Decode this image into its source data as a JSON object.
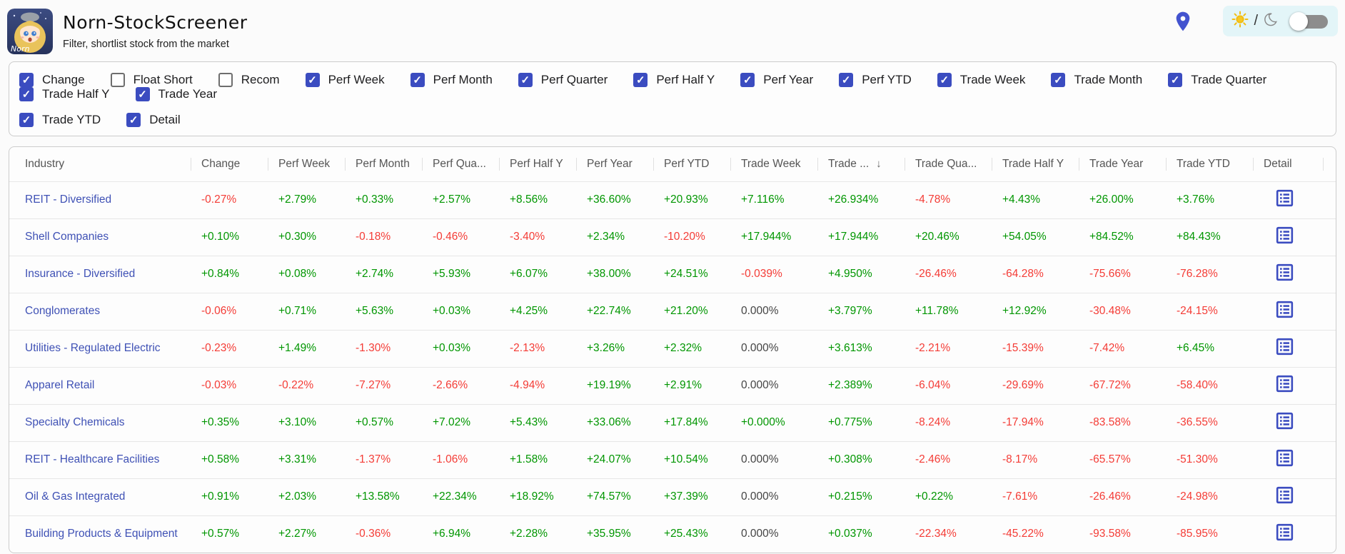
{
  "header": {
    "title": "Norn-StockScreener",
    "subtitle": "Filter, shortlist stock from the market",
    "logo_text": "Norn"
  },
  "toolbar": {
    "location_icon": "location-pin",
    "theme_separator": "/",
    "theme_toggle_state": "off"
  },
  "filters": {
    "row1": [
      {
        "label": "Change",
        "checked": true
      },
      {
        "label": "Float Short",
        "checked": false
      },
      {
        "label": "Recom",
        "checked": false
      },
      {
        "label": "Perf Week",
        "checked": true
      },
      {
        "label": "Perf Month",
        "checked": true
      },
      {
        "label": "Perf Quarter",
        "checked": true
      },
      {
        "label": "Perf Half Y",
        "checked": true
      },
      {
        "label": "Perf Year",
        "checked": true
      },
      {
        "label": "Perf YTD",
        "checked": true
      },
      {
        "label": "Trade Week",
        "checked": true
      },
      {
        "label": "Trade Month",
        "checked": true
      },
      {
        "label": "Trade Quarter",
        "checked": true
      },
      {
        "label": "Trade Half Y",
        "checked": true
      },
      {
        "label": "Trade Year",
        "checked": true
      }
    ],
    "row2": [
      {
        "label": "Trade YTD",
        "checked": true
      },
      {
        "label": "Detail",
        "checked": true
      }
    ]
  },
  "table": {
    "columns": [
      {
        "label": "Industry"
      },
      {
        "label": "Change"
      },
      {
        "label": "Perf Week"
      },
      {
        "label": "Perf Month"
      },
      {
        "label": "Perf Qua..."
      },
      {
        "label": "Perf Half Y"
      },
      {
        "label": "Perf Year"
      },
      {
        "label": "Perf YTD"
      },
      {
        "label": "Trade Week"
      },
      {
        "label": "Trade ...",
        "sort": "desc"
      },
      {
        "label": "Trade Qua..."
      },
      {
        "label": "Trade Half Y"
      },
      {
        "label": "Trade Year"
      },
      {
        "label": "Trade YTD"
      },
      {
        "label": "Detail"
      }
    ],
    "rows": [
      {
        "industry": "REIT - Diversified",
        "values": [
          "-0.27%",
          "+2.79%",
          "+0.33%",
          "+2.57%",
          "+8.56%",
          "+36.60%",
          "+20.93%",
          "+7.116%",
          "+26.934%",
          "-4.78%",
          "+4.43%",
          "+26.00%",
          "+3.76%"
        ]
      },
      {
        "industry": "Shell Companies",
        "values": [
          "+0.10%",
          "+0.30%",
          "-0.18%",
          "-0.46%",
          "-3.40%",
          "+2.34%",
          "-10.20%",
          "+17.944%",
          "+17.944%",
          "+20.46%",
          "+54.05%",
          "+84.52%",
          "+84.43%"
        ]
      },
      {
        "industry": "Insurance - Diversified",
        "values": [
          "+0.84%",
          "+0.08%",
          "+2.74%",
          "+5.93%",
          "+6.07%",
          "+38.00%",
          "+24.51%",
          "-0.039%",
          "+4.950%",
          "-26.46%",
          "-64.28%",
          "-75.66%",
          "-76.28%"
        ]
      },
      {
        "industry": "Conglomerates",
        "values": [
          "-0.06%",
          "+0.71%",
          "+5.63%",
          "+0.03%",
          "+4.25%",
          "+22.74%",
          "+21.20%",
          "0.000%",
          "+3.797%",
          "+11.78%",
          "+12.92%",
          "-30.48%",
          "-24.15%"
        ]
      },
      {
        "industry": "Utilities - Regulated Electric",
        "values": [
          "-0.23%",
          "+1.49%",
          "-1.30%",
          "+0.03%",
          "-2.13%",
          "+3.26%",
          "+2.32%",
          "0.000%",
          "+3.613%",
          "-2.21%",
          "-15.39%",
          "-7.42%",
          "+6.45%"
        ]
      },
      {
        "industry": "Apparel Retail",
        "values": [
          "-0.03%",
          "-0.22%",
          "-7.27%",
          "-2.66%",
          "-4.94%",
          "+19.19%",
          "+2.91%",
          "0.000%",
          "+2.389%",
          "-6.04%",
          "-29.69%",
          "-67.72%",
          "-58.40%"
        ]
      },
      {
        "industry": "Specialty Chemicals",
        "values": [
          "+0.35%",
          "+3.10%",
          "+0.57%",
          "+7.02%",
          "+5.43%",
          "+33.06%",
          "+17.84%",
          "+0.000%",
          "+0.775%",
          "-8.24%",
          "-17.94%",
          "-83.58%",
          "-36.55%"
        ]
      },
      {
        "industry": "REIT - Healthcare Facilities",
        "values": [
          "+0.58%",
          "+3.31%",
          "-1.37%",
          "-1.06%",
          "+1.58%",
          "+24.07%",
          "+10.54%",
          "0.000%",
          "+0.308%",
          "-2.46%",
          "-8.17%",
          "-65.57%",
          "-51.30%"
        ]
      },
      {
        "industry": "Oil & Gas Integrated",
        "values": [
          "+0.91%",
          "+2.03%",
          "+13.58%",
          "+22.34%",
          "+18.92%",
          "+74.57%",
          "+37.39%",
          "0.000%",
          "+0.215%",
          "+0.22%",
          "-7.61%",
          "-26.46%",
          "-24.98%"
        ]
      },
      {
        "industry": "Building Products & Equipment",
        "values": [
          "+0.57%",
          "+2.27%",
          "-0.36%",
          "+6.94%",
          "+2.28%",
          "+35.95%",
          "+25.43%",
          "0.000%",
          "+0.037%",
          "-22.34%",
          "-45.22%",
          "-93.58%",
          "-85.95%"
        ]
      }
    ]
  },
  "colors": {
    "positive": "#009600",
    "negative": "#f43c36",
    "neutral": "#444444",
    "accent": "#3b4cc0",
    "link": "#3f51b5",
    "pin": "#4353cf"
  }
}
